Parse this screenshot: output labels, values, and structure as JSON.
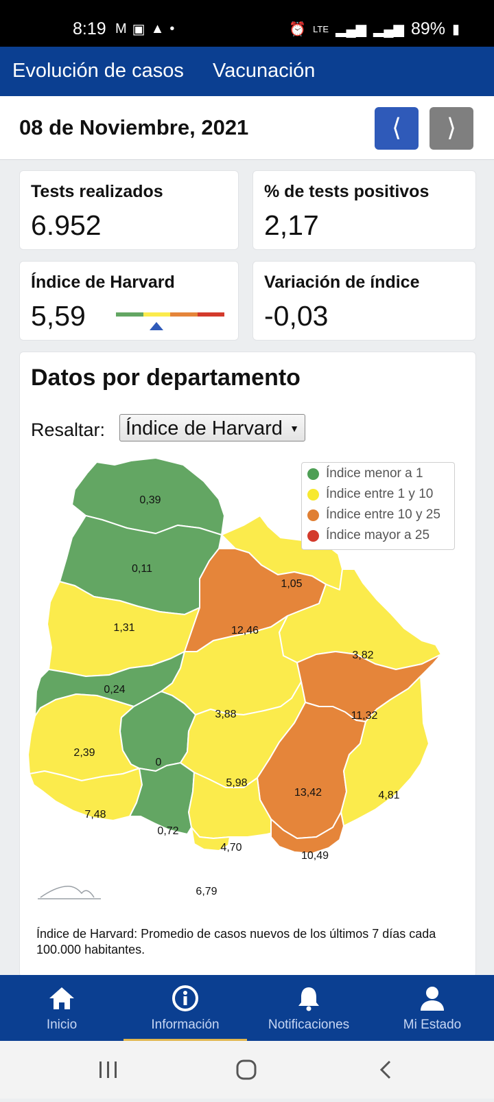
{
  "status_bar": {
    "time": "8:19",
    "network": "LTE",
    "battery": "89%"
  },
  "tabs": [
    {
      "label": "Evolución de casos",
      "active": true
    },
    {
      "label": "Vacunación",
      "active": false
    }
  ],
  "date": "08 de Noviembre, 2021",
  "nav": {
    "prev": "⟨",
    "next": "⟩"
  },
  "stats": {
    "tests": {
      "title": "Tests realizados",
      "value": "6.952"
    },
    "positive": {
      "title": "% de tests positivos",
      "value": "2,17"
    },
    "harvard": {
      "title": "Índice de Harvard",
      "value": "5,59"
    },
    "variation": {
      "title": "Variación de índice",
      "value": "-0,03"
    }
  },
  "dept": {
    "title": "Datos por departamento",
    "highlight_label": "Resaltar:",
    "highlight_value": "Índice de Harvard",
    "legend": [
      {
        "label": "Índice menor a 1",
        "color": "#4e9f55"
      },
      {
        "label": "Índice entre 1 y 10",
        "color": "#f7e930"
      },
      {
        "label": "Índice entre 10 y 25",
        "color": "#e07f33"
      },
      {
        "label": "Índice mayor a 25",
        "color": "#d33a2c"
      }
    ],
    "values": [
      "0,39",
      "0,11",
      "1,05",
      "1,31",
      "12,46",
      "3,82",
      "0,24",
      "3,88",
      "11,32",
      "2,39",
      "0",
      "5,98",
      "13,42",
      "4,81",
      "7,48",
      "0,72",
      "4,70",
      "10,49",
      "6,79"
    ],
    "footnote": "Índice de Harvard: Promedio de casos nuevos de los últimos 7 días cada 100.000 habitantes."
  },
  "colors": {
    "green": "#63a663",
    "yellow": "#fbeb4c",
    "orange": "#e5853a",
    "red": "#d33a2c",
    "brand_blue": "#0b3f91",
    "accent": "#e2b74f"
  },
  "bottom_nav": [
    {
      "label": "Inicio",
      "icon": "home-icon"
    },
    {
      "label": "Información",
      "icon": "info-icon",
      "active": true
    },
    {
      "label": "Notificaciones",
      "icon": "bell-icon"
    },
    {
      "label": "Mi Estado",
      "icon": "user-icon"
    }
  ]
}
